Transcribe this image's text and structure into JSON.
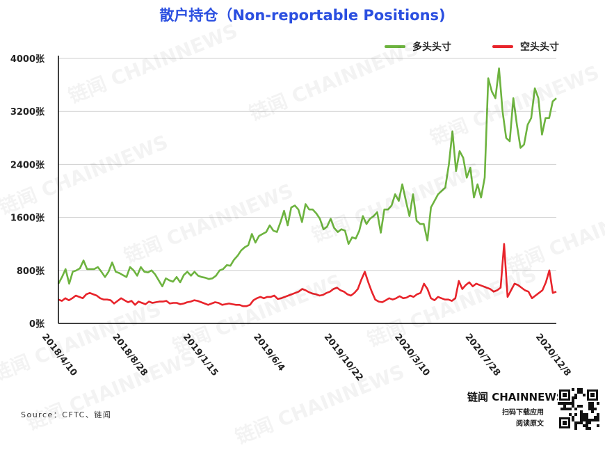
{
  "chart_data": {
    "type": "line",
    "title": "散户持仓（Non-reportable Positions)",
    "y_ticks": [
      "0张",
      "800张",
      "1600张",
      "2400张",
      "3200张",
      "4000张"
    ],
    "ylim": [
      0,
      4000
    ],
    "x_tick_labels": [
      "2018/4/10",
      "2018/8/28",
      "2019/1/15",
      "2019/6/4",
      "2019/10/22",
      "2020/3/10",
      "2020/7/28",
      "2020/12/8"
    ],
    "grid": "horizontal",
    "legend_position": "top-right",
    "series": [
      {
        "name": "多头头寸",
        "color": "#6db33f",
        "values": [
          600,
          700,
          820,
          600,
          780,
          800,
          830,
          950,
          820,
          820,
          820,
          850,
          780,
          700,
          780,
          920,
          780,
          760,
          730,
          700,
          850,
          800,
          720,
          850,
          780,
          770,
          800,
          740,
          650,
          560,
          680,
          650,
          630,
          700,
          620,
          730,
          780,
          720,
          780,
          720,
          700,
          690,
          670,
          680,
          720,
          800,
          820,
          880,
          870,
          960,
          1020,
          1100,
          1150,
          1180,
          1350,
          1220,
          1320,
          1350,
          1380,
          1480,
          1400,
          1380,
          1530,
          1700,
          1480,
          1750,
          1780,
          1720,
          1530,
          1800,
          1720,
          1720,
          1660,
          1580,
          1420,
          1460,
          1580,
          1440,
          1380,
          1420,
          1400,
          1200,
          1300,
          1280,
          1400,
          1620,
          1500,
          1580,
          1620,
          1680,
          1370,
          1720,
          1720,
          1780,
          1950,
          1850,
          2100,
          1850,
          1620,
          1950,
          1550,
          1500,
          1500,
          1250,
          1750,
          1850,
          1950,
          2000,
          2050,
          2400,
          2900,
          2300,
          2600,
          2500,
          2200,
          2350,
          1900,
          2100,
          1900,
          2200,
          3700,
          3500,
          3400,
          3850,
          3200,
          2800,
          2750,
          3400,
          3000,
          2650,
          2700,
          3000,
          3100,
          3550,
          3400,
          2850,
          3100,
          3100,
          3350,
          3400
        ]
      },
      {
        "name": "空头头寸",
        "color": "#e8242b",
        "values": [
          360,
          340,
          380,
          350,
          380,
          420,
          400,
          380,
          440,
          460,
          440,
          420,
          380,
          360,
          360,
          350,
          300,
          340,
          380,
          350,
          320,
          340,
          280,
          330,
          310,
          290,
          330,
          310,
          320,
          330,
          330,
          340,
          300,
          310,
          310,
          290,
          300,
          320,
          330,
          350,
          340,
          320,
          300,
          280,
          300,
          320,
          310,
          280,
          290,
          300,
          290,
          280,
          280,
          260,
          260,
          280,
          350,
          380,
          400,
          380,
          400,
          400,
          420,
          370,
          380,
          400,
          420,
          440,
          460,
          480,
          520,
          500,
          470,
          450,
          440,
          420,
          430,
          460,
          480,
          520,
          540,
          500,
          480,
          440,
          420,
          460,
          520,
          660,
          780,
          620,
          480,
          360,
          330,
          320,
          350,
          380,
          360,
          380,
          410,
          380,
          390,
          420,
          400,
          440,
          460,
          600,
          520,
          380,
          350,
          400,
          380,
          360,
          360,
          340,
          380,
          640,
          520,
          580,
          620,
          560,
          600,
          580,
          560,
          540,
          520,
          480,
          500,
          540,
          1200,
          400,
          500,
          600,
          580,
          540,
          500,
          480,
          380,
          420,
          460,
          500,
          620,
          800,
          460,
          480
        ]
      }
    ]
  },
  "source_text": "Source：CFTC、链闻",
  "brand": {
    "name": "链闻 CHAINNEWS",
    "line1": "扫码下载应用",
    "line2": "阅读原文"
  },
  "watermark_text": "链闻 CHAINNEWS"
}
